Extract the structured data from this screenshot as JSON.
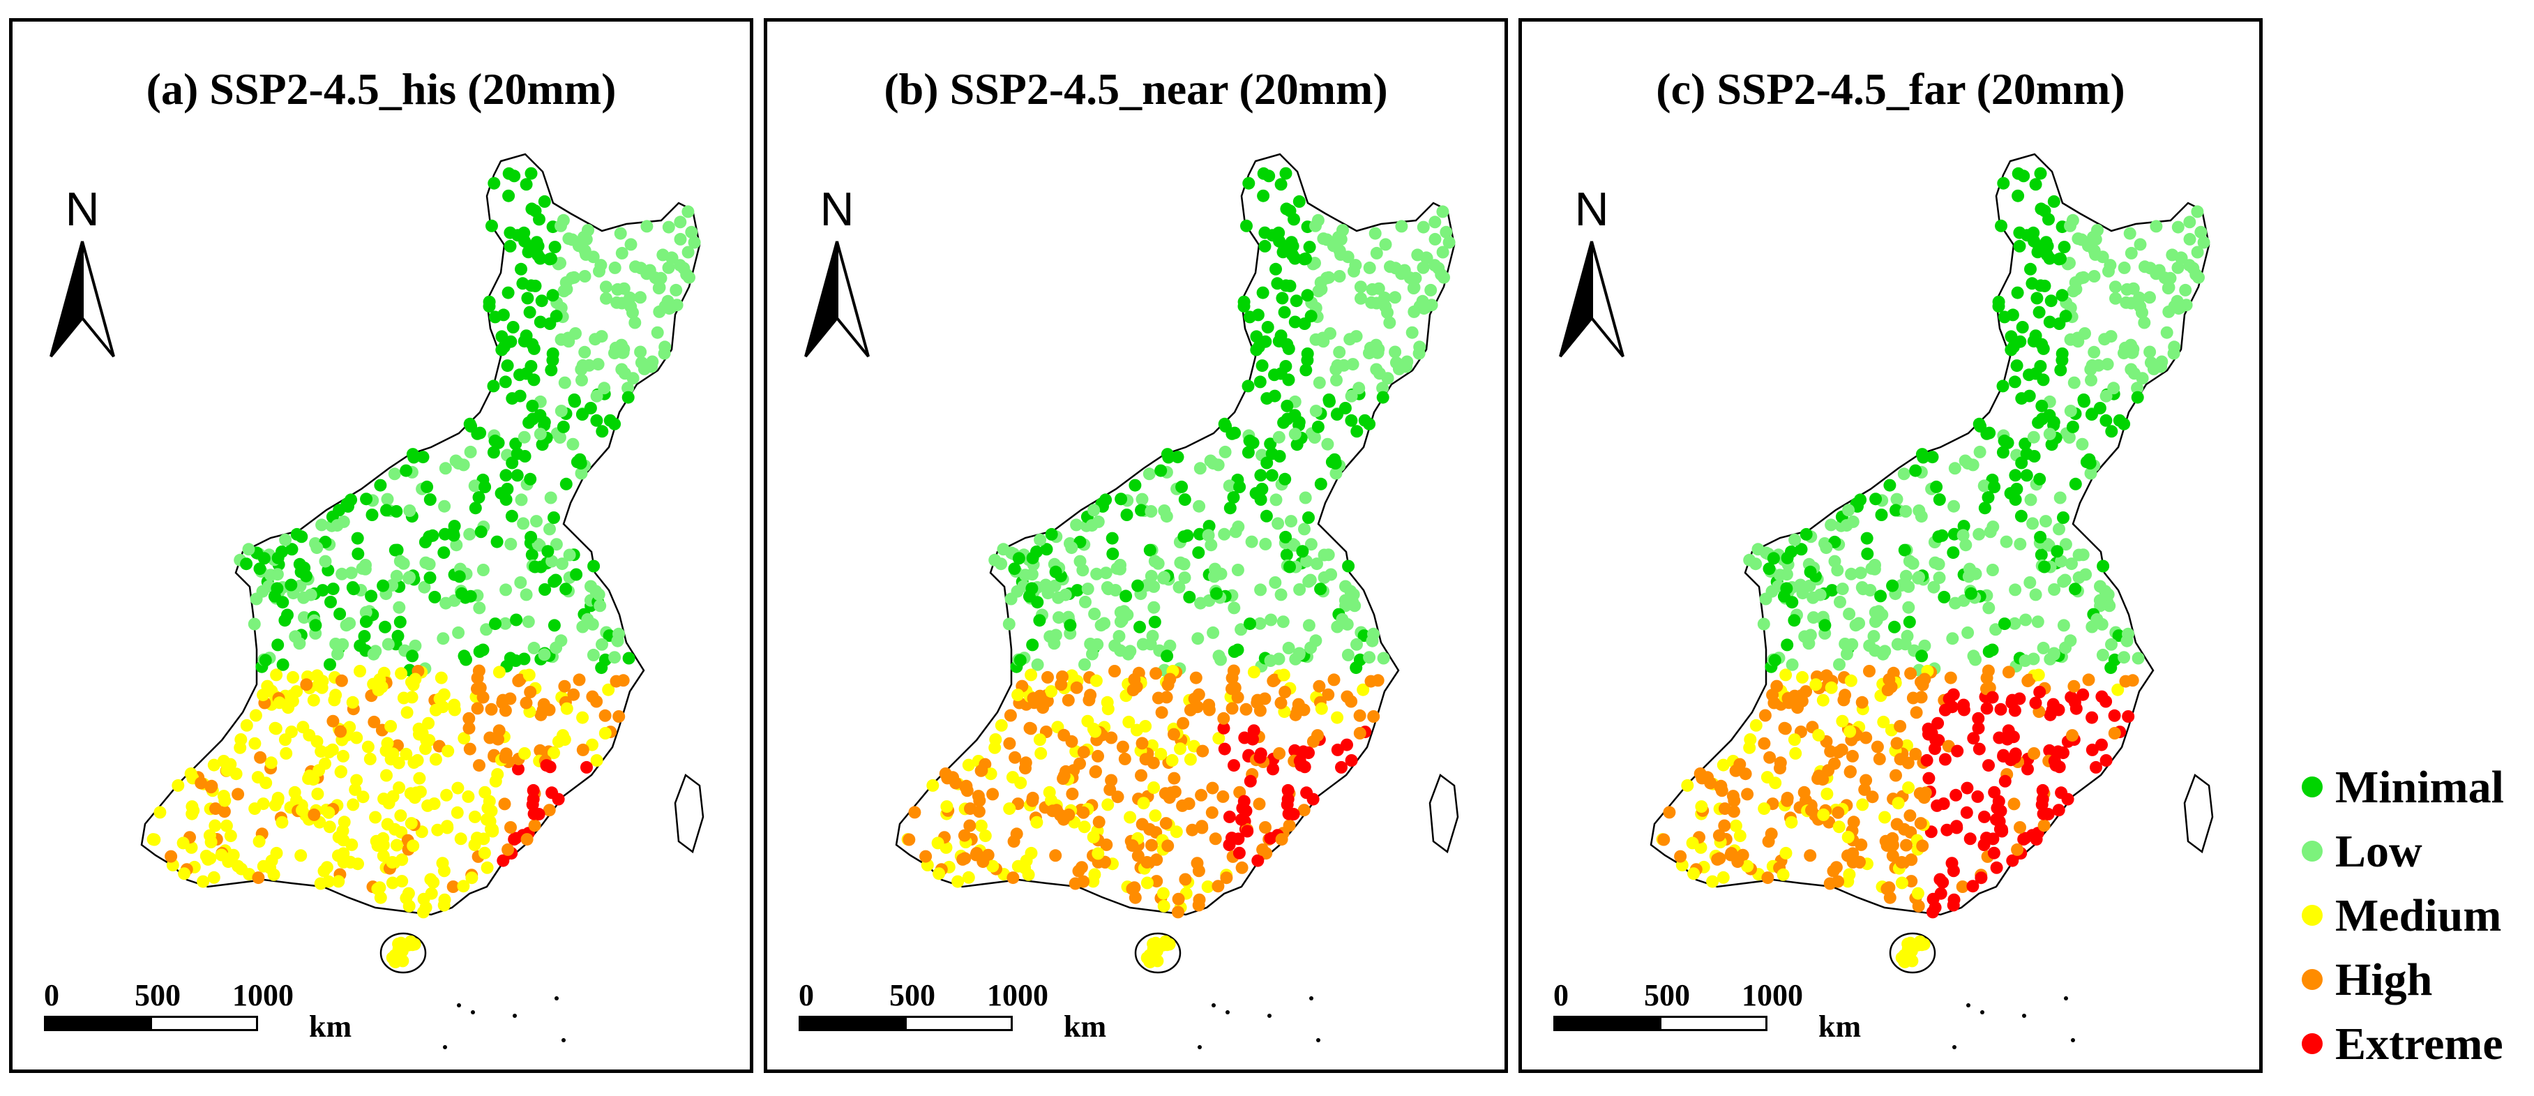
{
  "panels": [
    {
      "title": "(a) SSP2-4.5_his (20mm)",
      "scenario": "his"
    },
    {
      "title": "(b) SSP2-4.5_near (20mm)",
      "scenario": "near"
    },
    {
      "title": "(c) SSP2-4.5_far (20mm)",
      "scenario": "far"
    }
  ],
  "north_arrow": {
    "label": "N"
  },
  "scale_bar": {
    "ticks": [
      "0",
      "500",
      "1000"
    ],
    "unit": "km"
  },
  "legend": {
    "items": [
      {
        "label": "Minimal",
        "color": "#00d400"
      },
      {
        "label": "Low",
        "color": "#7cf27c"
      },
      {
        "label": "Medium",
        "color": "#ffff00"
      },
      {
        "label": "High",
        "color": "#ff8c00"
      },
      {
        "label": "Extreme",
        "color": "#ff0000"
      }
    ]
  },
  "risk_levels": [
    "Minimal",
    "Low",
    "Medium",
    "High",
    "Extreme"
  ]
}
